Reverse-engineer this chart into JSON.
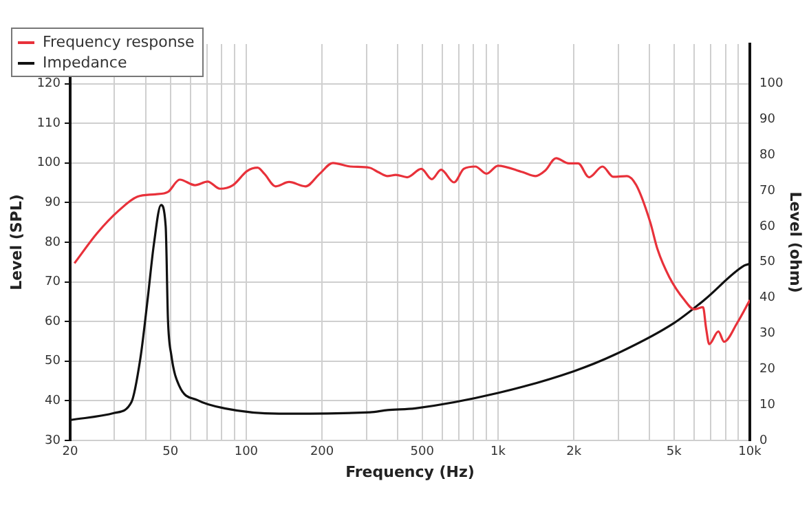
{
  "chart_data": {
    "type": "line",
    "xlabel": "Frequency (Hz)",
    "ylabel": "Level (SPL)",
    "y2label": "Level (ohm)",
    "log": "x",
    "grid": true,
    "legend": "top left",
    "marker": "none",
    "line_style": "solid",
    "xlim": [
      20,
      10000
    ],
    "xticks": [
      20,
      {
        "value": 30,
        "label": null
      },
      {
        "value": 40,
        "label": null
      },
      50,
      {
        "value": 60,
        "label": null
      },
      {
        "value": 70,
        "label": null
      },
      {
        "value": 80,
        "label": null
      },
      {
        "value": 90,
        "label": null
      },
      100,
      200,
      {
        "value": 300,
        "label": null
      },
      {
        "value": 400,
        "label": null
      },
      500,
      {
        "value": 600,
        "label": null
      },
      {
        "value": 700,
        "label": null
      },
      {
        "value": 800,
        "label": null
      },
      {
        "value": 900,
        "label": null
      },
      {
        "value": 1000,
        "label": "1k"
      },
      {
        "value": 2000,
        "label": "2k"
      },
      {
        "value": 3000,
        "label": null
      },
      {
        "value": 4000,
        "label": null
      },
      {
        "value": 5000,
        "label": "5k"
      },
      {
        "value": 6000,
        "label": null
      },
      {
        "value": 7000,
        "label": null
      },
      {
        "value": 8000,
        "label": null
      },
      {
        "value": 9000,
        "label": null
      },
      {
        "value": 10000,
        "label": "10k"
      }
    ],
    "ylim": [
      30,
      130
    ],
    "yticks": [
      30,
      40,
      50,
      60,
      70,
      80,
      90,
      100,
      110,
      120
    ],
    "y2lim": [
      0,
      111.1
    ],
    "y2ticks": [
      0,
      10,
      20,
      30,
      40,
      50,
      60,
      70,
      80,
      90,
      100
    ],
    "series": [
      {
        "name": "Frequency response",
        "color": "#e8313a",
        "x": [
          20.8,
          25.6,
          31.2,
          37,
          43.6,
          48.9,
          54.5,
          62.6,
          70.3,
          78.7,
          88.6,
          101,
          111,
          118,
          131,
          148,
          172,
          196,
          221,
          260,
          309,
          334,
          364,
          393,
          436,
          496,
          546,
          594,
          669,
          731,
          813,
          900,
          1000,
          1250,
          1410,
          1540,
          1700,
          1910,
          2080,
          2300,
          2600,
          2870,
          3250,
          3540,
          4020,
          4300,
          4790,
          5500,
          6000,
          6520,
          6700,
          6900,
          7500,
          7900,
          8900,
          10000
        ],
        "values": [
          74.7,
          82.3,
          88,
          91.5,
          92.1,
          92.7,
          95.8,
          94.4,
          95.3,
          93.5,
          94.4,
          98,
          98.8,
          97.3,
          94.1,
          95.2,
          94.1,
          97.3,
          100,
          99.1,
          98.8,
          97.7,
          96.7,
          97,
          96.4,
          98.5,
          95.9,
          98.3,
          95.1,
          98.5,
          99.1,
          97.3,
          99.3,
          97.7,
          96.7,
          98.1,
          101.2,
          99.9,
          99.9,
          96.4,
          99.1,
          96.5,
          96.7,
          94.4,
          85.1,
          78.2,
          71.2,
          65.4,
          63.1,
          63.6,
          58.4,
          54.3,
          57.5,
          54.9,
          59.6,
          65.4
        ]
      },
      {
        "name": "Impedance",
        "color": "#111111",
        "axis": "y2",
        "x": [
          20,
          30,
          35,
          38,
          40.6,
          43,
          45.9,
          47.9,
          48.9,
          50.4,
          54.3,
          64,
          82,
          135,
          310,
          364,
          470,
          1000,
          2000,
          2900,
          5000,
          6600,
          9500,
          10000
        ],
        "values": [
          5.7,
          7.7,
          10.7,
          23,
          39.5,
          55,
          66,
          60,
          34,
          24,
          15.2,
          11.3,
          9,
          7.5,
          7.9,
          8.5,
          9,
          13.3,
          19.4,
          24,
          32.9,
          39.4,
          49,
          49.5
        ]
      }
    ]
  }
}
